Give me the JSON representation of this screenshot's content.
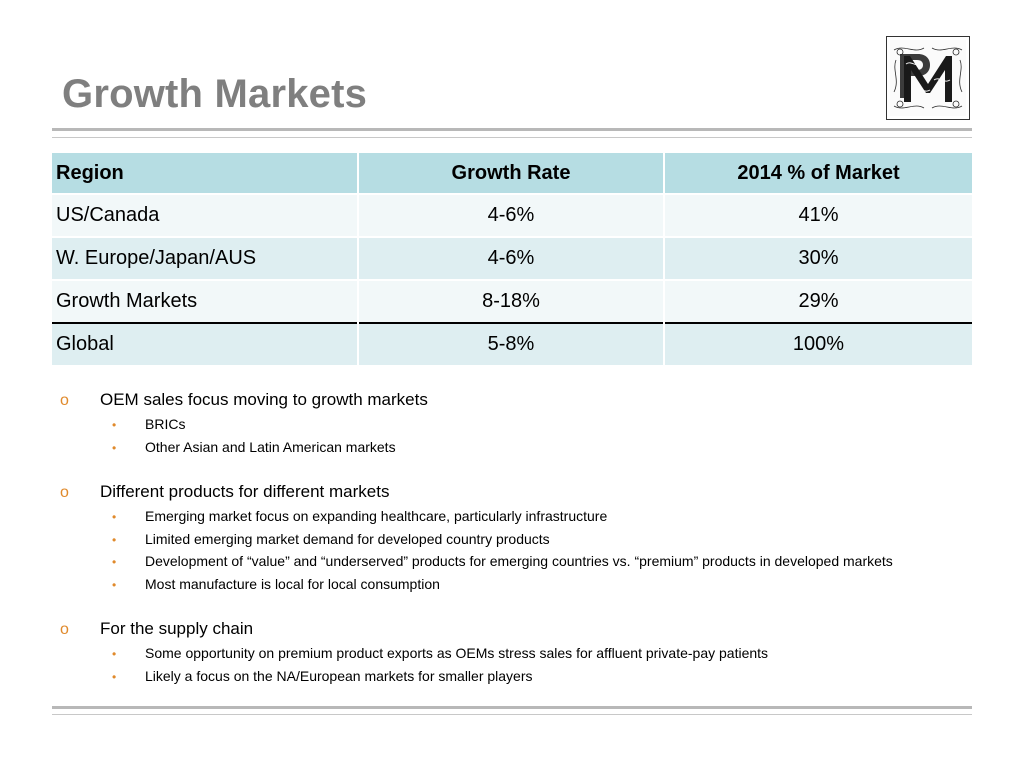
{
  "title": "Growth Markets",
  "logo": {
    "icon": "monogram-logo-icon"
  },
  "table": {
    "headers": [
      "Region",
      "Growth Rate",
      "2014 % of Market"
    ],
    "rows": [
      [
        "US/Canada",
        "4-6%",
        "41%"
      ],
      [
        "W. Europe/Japan/AUS",
        "4-6%",
        "30%"
      ],
      [
        "Growth Markets",
        "8-18%",
        "29%"
      ],
      [
        "Global",
        "5-8%",
        "100%"
      ]
    ]
  },
  "bullets": [
    {
      "text": "OEM sales focus moving to growth markets",
      "subs": [
        "BRICs",
        "Other Asian and Latin American markets"
      ]
    },
    {
      "text": "Different products for different markets",
      "subs": [
        "Emerging market focus on expanding healthcare, particularly infrastructure",
        "Limited emerging market demand for developed country products",
        "Development of “value” and “underserved” products for emerging countries vs. “premium” products in developed markets",
        "Most manufacture is local for local consumption"
      ]
    },
    {
      "text": "For the supply chain",
      "subs": [
        "Some opportunity on premium product exports as OEMs stress sales for affluent private-pay patients",
        "Likely a focus on the NA/European markets for smaller players"
      ]
    }
  ],
  "markers": {
    "level1": "o",
    "level2": "•"
  },
  "colors": {
    "title": "#7f7f7f",
    "header_fill": "#b6dde3",
    "row_light": "#f2f8f9",
    "row_dark": "#deeef1",
    "bullet": "#e08a2c"
  }
}
